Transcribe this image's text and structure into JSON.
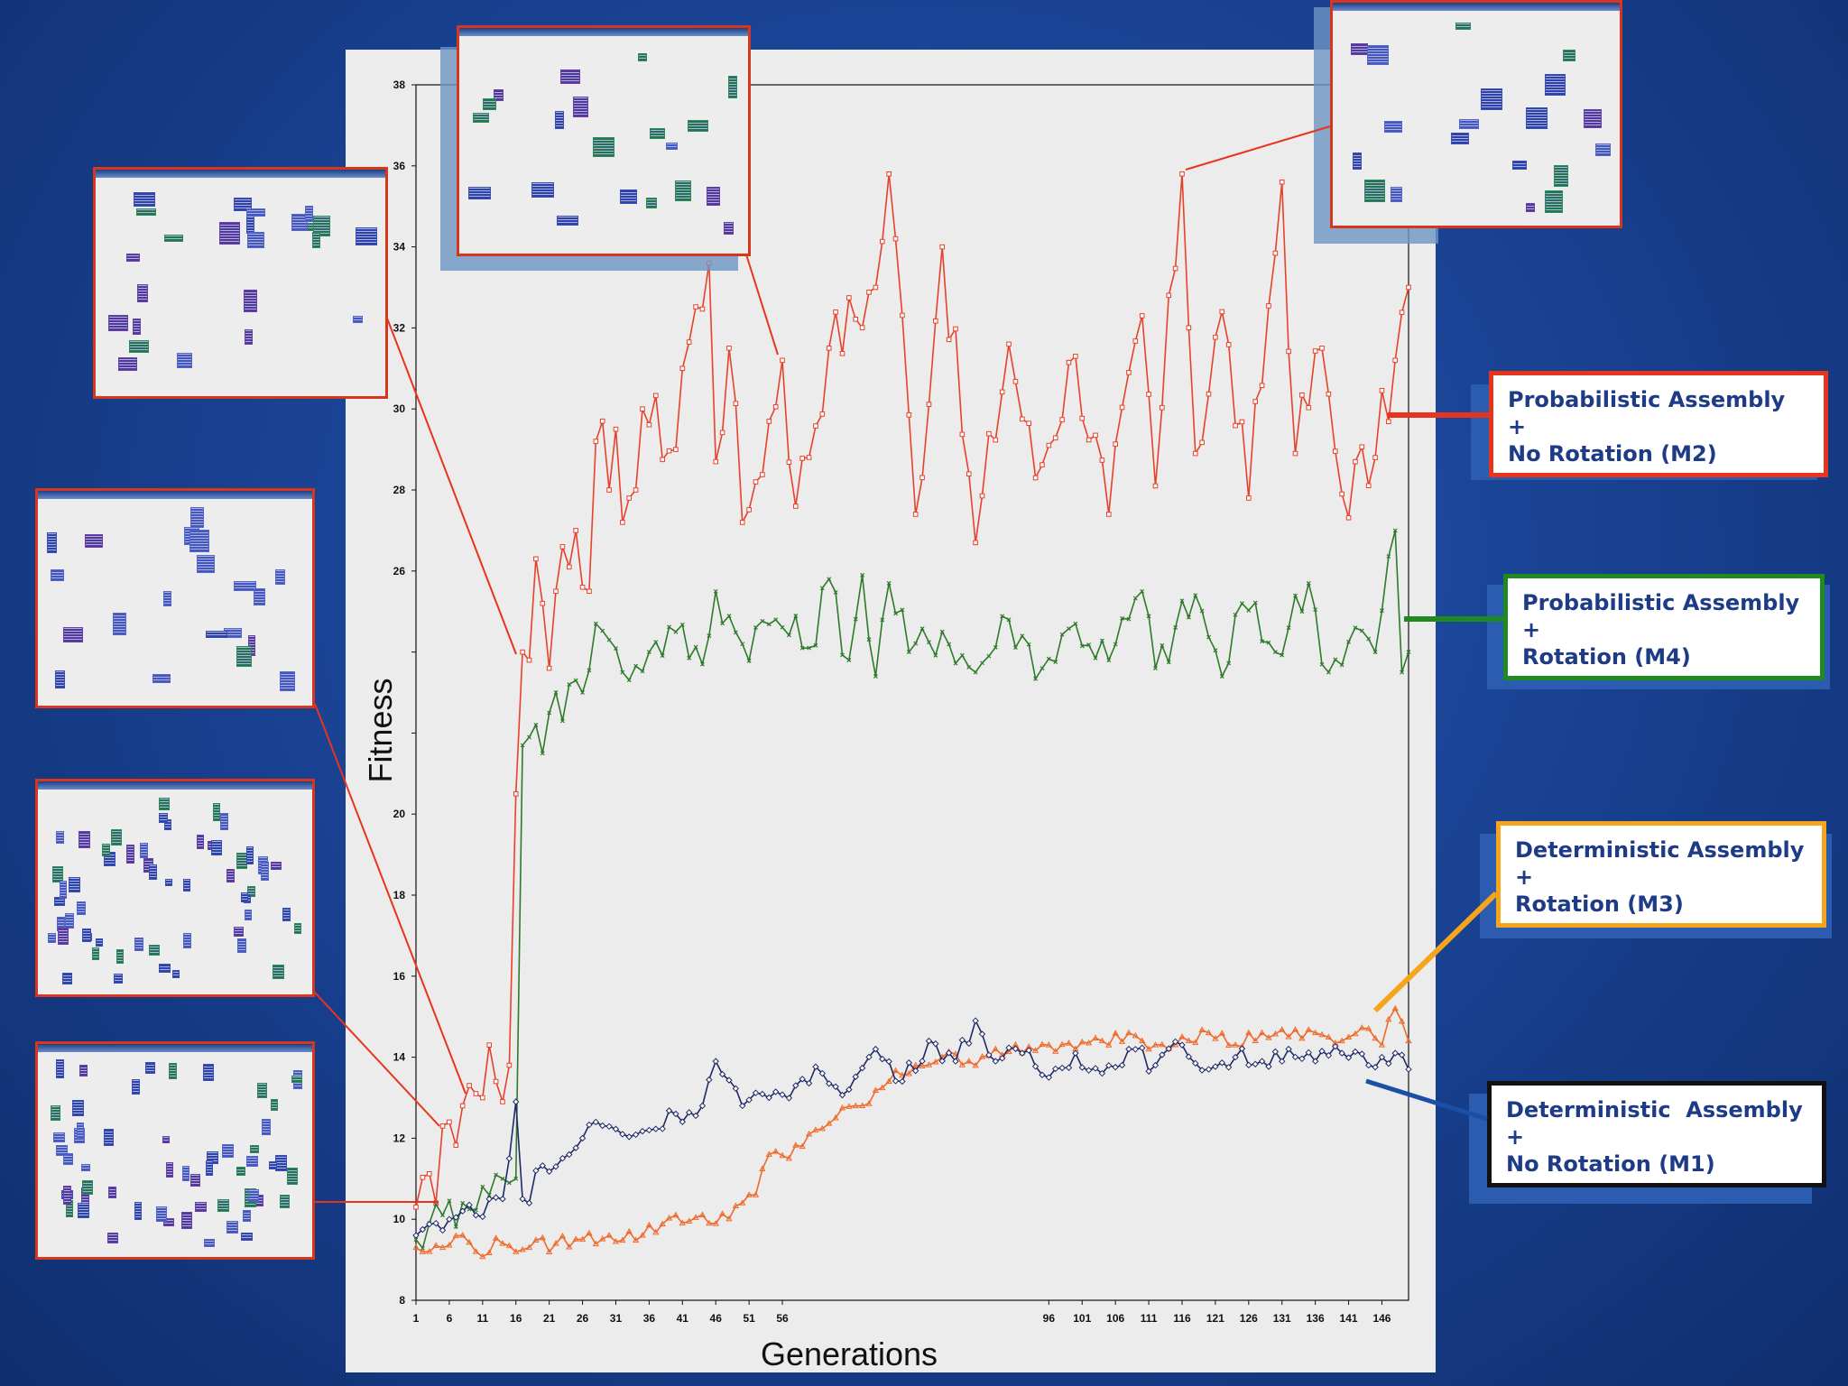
{
  "chart_data": {
    "type": "line",
    "ylabel": "Fitness",
    "xlabel": "Generations",
    "ylim": [
      8,
      38
    ],
    "xlim": [
      1,
      150
    ],
    "y_ticks": [
      "8",
      "10",
      "12",
      "14",
      "16",
      "18",
      "20",
      "22",
      "24",
      "26",
      "28",
      "30",
      "32",
      "34",
      "36",
      "38"
    ],
    "x_ticks": [
      "1",
      "6",
      "11",
      "16",
      "21",
      "26",
      "31",
      "36",
      "41",
      "46",
      "51",
      "56",
      "96",
      "101",
      "106",
      "111",
      "116",
      "121",
      "126",
      "131",
      "136",
      "141",
      "146"
    ],
    "series": [
      {
        "name": "Probabilistic Assembly + No Rotation (M2)",
        "color": "#e8412a",
        "key_points": [
          [
            1,
            10.3
          ],
          [
            4,
            10.4
          ],
          [
            5,
            12.3
          ],
          [
            6,
            12.4
          ],
          [
            8,
            12.8
          ],
          [
            9,
            13.3
          ],
          [
            10,
            13.1
          ],
          [
            11,
            13
          ],
          [
            12,
            14.3
          ],
          [
            13,
            13.4
          ],
          [
            14,
            12.9
          ],
          [
            15,
            13.8
          ],
          [
            16,
            20.5
          ],
          [
            17,
            24
          ],
          [
            18,
            23.8
          ],
          [
            19,
            26.3
          ],
          [
            20,
            25.2
          ],
          [
            21,
            23.6
          ],
          [
            22,
            25.5
          ],
          [
            23,
            26.6
          ],
          [
            24,
            26.1
          ],
          [
            25,
            27
          ],
          [
            26,
            25.6
          ],
          [
            27,
            25.5
          ],
          [
            28,
            29.2
          ],
          [
            29,
            29.7
          ],
          [
            30,
            28
          ],
          [
            31,
            29.5
          ],
          [
            32,
            27.2
          ],
          [
            33,
            27.8
          ],
          [
            34,
            28
          ],
          [
            35,
            30
          ],
          [
            40,
            29
          ],
          [
            41,
            31
          ],
          [
            45,
            33.6
          ],
          [
            46,
            28.7
          ],
          [
            48,
            31.5
          ],
          [
            50,
            27.2
          ],
          [
            52,
            28.2
          ],
          [
            56,
            31.2
          ],
          [
            58,
            27.6
          ],
          [
            63,
            31.5
          ],
          [
            70,
            33
          ],
          [
            72,
            35.8
          ],
          [
            73,
            34.2
          ],
          [
            76,
            27.4
          ],
          [
            80,
            34
          ],
          [
            85,
            26.7
          ],
          [
            90,
            31.6
          ],
          [
            94,
            28.3
          ],
          [
            100,
            31.3
          ],
          [
            105,
            27.4
          ],
          [
            110,
            32.3
          ],
          [
            112,
            28.1
          ],
          [
            116,
            35.8
          ],
          [
            118,
            28.9
          ],
          [
            122,
            32.4
          ],
          [
            126,
            27.8
          ],
          [
            131,
            35.6
          ],
          [
            133,
            28.9
          ],
          [
            137,
            31.5
          ],
          [
            140,
            27.9
          ],
          [
            145,
            28.8
          ],
          [
            148,
            31.2
          ],
          [
            150,
            33
          ]
        ]
      },
      {
        "name": "Probabilistic Assembly + Rotation (M4)",
        "color": "#2f7a2a",
        "key_points": [
          [
            1,
            9.5
          ],
          [
            3,
            9.9
          ],
          [
            5,
            10.1
          ],
          [
            8,
            10.4
          ],
          [
            11,
            10.8
          ],
          [
            12,
            10.6
          ],
          [
            14,
            11
          ],
          [
            15,
            10.9
          ],
          [
            16,
            11
          ],
          [
            17,
            21.7
          ],
          [
            18,
            21.9
          ],
          [
            19,
            22.2
          ],
          [
            20,
            21.5
          ],
          [
            21,
            22.5
          ],
          [
            22,
            23
          ],
          [
            23,
            22.3
          ],
          [
            24,
            23.2
          ],
          [
            25,
            23.3
          ],
          [
            26,
            23
          ],
          [
            28,
            24.7
          ],
          [
            30,
            24.3
          ],
          [
            32,
            23.5
          ],
          [
            36,
            24
          ],
          [
            40,
            24.5
          ],
          [
            44,
            23.7
          ],
          [
            46,
            25.5
          ],
          [
            50,
            24.2
          ],
          [
            55,
            24.8
          ],
          [
            60,
            24.1
          ],
          [
            63,
            25.8
          ],
          [
            66,
            23.8
          ],
          [
            68,
            25.9
          ],
          [
            70,
            23.4
          ],
          [
            72,
            25.7
          ],
          [
            75,
            24
          ],
          [
            80,
            24.5
          ],
          [
            85,
            23.5
          ],
          [
            90,
            24.8
          ],
          [
            95,
            23.6
          ],
          [
            100,
            24.7
          ],
          [
            105,
            23.8
          ],
          [
            110,
            25.5
          ],
          [
            112,
            23.6
          ],
          [
            118,
            25.4
          ],
          [
            122,
            23.4
          ],
          [
            125,
            25.2
          ],
          [
            130,
            24
          ],
          [
            135,
            25.7
          ],
          [
            138,
            23.5
          ],
          [
            142,
            24.6
          ],
          [
            145,
            24
          ],
          [
            148,
            27
          ],
          [
            149,
            23.5
          ],
          [
            150,
            24
          ]
        ]
      },
      {
        "name": "Deterministic Assembly + Rotation (M3)",
        "color": "#ef6a2a",
        "key_points": [
          [
            1,
            9.3
          ],
          [
            3,
            9.2
          ],
          [
            5,
            9.3
          ],
          [
            8,
            9.6
          ],
          [
            10,
            9.2
          ],
          [
            14,
            9.4
          ],
          [
            18,
            9.3
          ],
          [
            22,
            9.4
          ],
          [
            26,
            9.5
          ],
          [
            30,
            9.6
          ],
          [
            35,
            9.6
          ],
          [
            40,
            10.1
          ],
          [
            45,
            9.9
          ],
          [
            50,
            10.4
          ],
          [
            52,
            10.6
          ],
          [
            54,
            11.6
          ],
          [
            57,
            11.5
          ],
          [
            60,
            12.1
          ],
          [
            64,
            12.5
          ],
          [
            68,
            12.8
          ],
          [
            72,
            13.4
          ],
          [
            76,
            13.8
          ],
          [
            80,
            14
          ],
          [
            84,
            13.9
          ],
          [
            88,
            14.2
          ],
          [
            92,
            14.1
          ],
          [
            96,
            14.3
          ],
          [
            100,
            14.2
          ],
          [
            104,
            14.4
          ],
          [
            108,
            14.6
          ],
          [
            112,
            14.3
          ],
          [
            116,
            14.5
          ],
          [
            120,
            14.6
          ],
          [
            124,
            14.3
          ],
          [
            128,
            14.6
          ],
          [
            132,
            14.5
          ],
          [
            136,
            14.6
          ],
          [
            140,
            14.4
          ],
          [
            144,
            14.7
          ],
          [
            146,
            14.3
          ],
          [
            148,
            15.2
          ],
          [
            150,
            14.4
          ]
        ]
      },
      {
        "name": "Deterministic Assembly + No Rotation (M1)",
        "color": "#1f2a66",
        "key_points": [
          [
            1,
            9.6
          ],
          [
            4,
            9.9
          ],
          [
            6,
            10
          ],
          [
            8,
            10.2
          ],
          [
            10,
            10.1
          ],
          [
            12,
            10.5
          ],
          [
            14,
            10.5
          ],
          [
            15,
            11.5
          ],
          [
            16,
            12.9
          ],
          [
            17,
            10.5
          ],
          [
            18,
            10.4
          ],
          [
            19,
            11.2
          ],
          [
            22,
            11.3
          ],
          [
            26,
            12
          ],
          [
            28,
            12.4
          ],
          [
            32,
            12.1
          ],
          [
            36,
            12.2
          ],
          [
            40,
            12.6
          ],
          [
            44,
            12.8
          ],
          [
            46,
            13.9
          ],
          [
            50,
            12.8
          ],
          [
            54,
            13
          ],
          [
            58,
            13.3
          ],
          [
            62,
            13.6
          ],
          [
            66,
            13.2
          ],
          [
            70,
            14.2
          ],
          [
            74,
            13.4
          ],
          [
            78,
            14.4
          ],
          [
            82,
            13.9
          ],
          [
            85,
            14.9
          ],
          [
            88,
            13.9
          ],
          [
            92,
            14.1
          ],
          [
            96,
            13.5
          ],
          [
            100,
            14.1
          ],
          [
            104,
            13.6
          ],
          [
            108,
            14.2
          ],
          [
            112,
            13.8
          ],
          [
            116,
            14.3
          ],
          [
            120,
            13.7
          ],
          [
            124,
            14
          ],
          [
            128,
            13.9
          ],
          [
            132,
            14.2
          ],
          [
            136,
            13.9
          ],
          [
            140,
            14.1
          ],
          [
            144,
            13.8
          ],
          [
            148,
            14.1
          ],
          [
            150,
            13.7
          ]
        ]
      }
    ],
    "legend": [
      {
        "line1": "Probabilistic Assembly",
        "line2": "+",
        "line3": "No Rotation (M2)",
        "border": "#e8341c"
      },
      {
        "line1": "Probabilistic Assembly",
        "line2": "+",
        "line3": "Rotation (M4)",
        "border": "#1f8a1f"
      },
      {
        "line1": "Deterministic Assembly",
        "line2": "+",
        "line3": "Rotation (M3)",
        "border": "#f5a41c"
      },
      {
        "line1": "Deterministic  Assembly",
        "line2": "+",
        "line3": "No Rotation (M1)",
        "border": "#111111"
      }
    ]
  }
}
